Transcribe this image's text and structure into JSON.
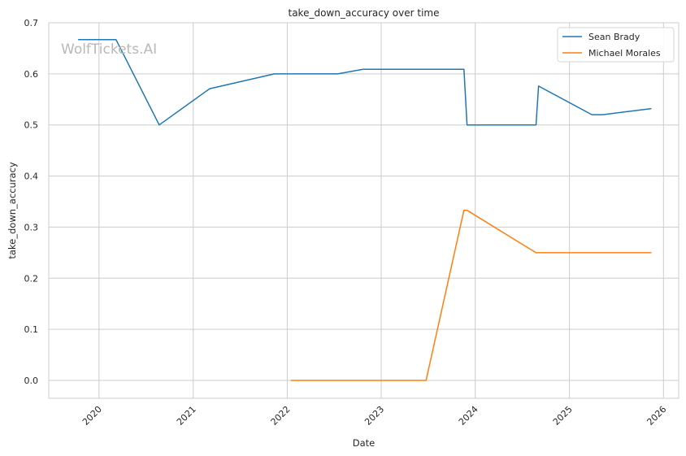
{
  "chart_data": {
    "type": "line",
    "title": "take_down_accuracy over time",
    "xlabel": "Date",
    "ylabel": "take_down_accuracy",
    "watermark": "WolfTickets.AI",
    "xlim": [
      "2019-06-20",
      "2026-03-01"
    ],
    "ylim": [
      -0.035,
      0.7
    ],
    "x_ticks": [
      "2020",
      "2021",
      "2022",
      "2023",
      "2024",
      "2025",
      "2026"
    ],
    "y_ticks": [
      "0.0",
      "0.1",
      "0.2",
      "0.3",
      "0.4",
      "0.5",
      "0.6",
      "0.7"
    ],
    "grid": true,
    "legend_position": "top-right",
    "series": [
      {
        "name": "Sean Brady",
        "color": "#1f77b4",
        "points": [
          {
            "x": "2019-10-12",
            "y": 0.667
          },
          {
            "x": "2020-03-07",
            "y": 0.667
          },
          {
            "x": "2020-08-22",
            "y": 0.5
          },
          {
            "x": "2021-03-06",
            "y": 0.571
          },
          {
            "x": "2021-11-12",
            "y": 0.6
          },
          {
            "x": "2022-07-16",
            "y": 0.6
          },
          {
            "x": "2022-10-22",
            "y": 0.609
          },
          {
            "x": "2023-11-18",
            "y": 0.609
          },
          {
            "x": "2023-11-30",
            "y": 0.5
          },
          {
            "x": "2024-08-24",
            "y": 0.5
          },
          {
            "x": "2024-09-03",
            "y": 0.576
          },
          {
            "x": "2025-03-29",
            "y": 0.52
          },
          {
            "x": "2025-05-10",
            "y": 0.52
          },
          {
            "x": "2025-11-15",
            "y": 0.532
          }
        ]
      },
      {
        "name": "Michael Morales",
        "color": "#ff7f0e",
        "points": [
          {
            "x": "2022-01-15",
            "y": 0.0
          },
          {
            "x": "2023-06-24",
            "y": 0.0
          },
          {
            "x": "2023-11-18",
            "y": 0.333
          },
          {
            "x": "2023-11-30",
            "y": 0.333
          },
          {
            "x": "2024-08-24",
            "y": 0.25
          },
          {
            "x": "2025-11-15",
            "y": 0.25
          }
        ]
      }
    ]
  }
}
